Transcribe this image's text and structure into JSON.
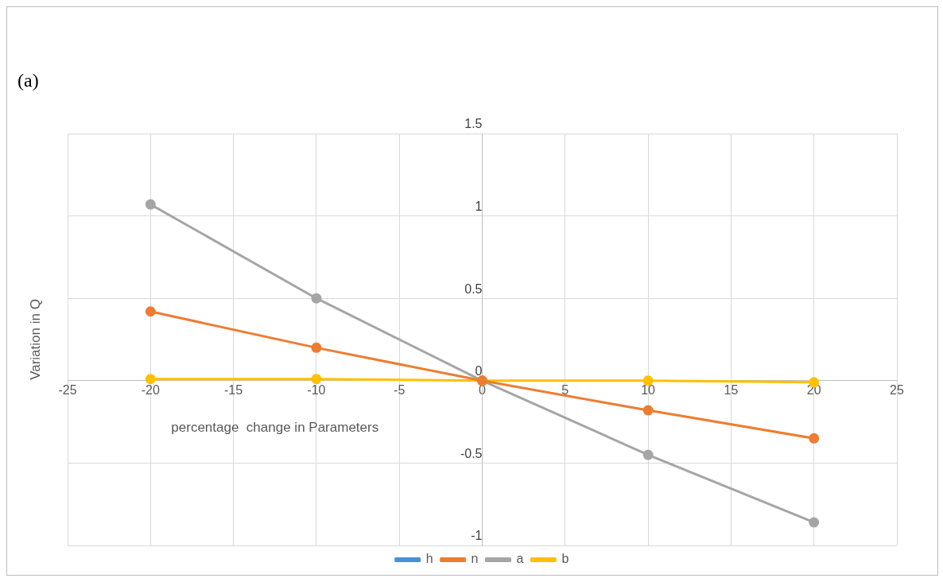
{
  "chart_data": {
    "type": "line",
    "xlabel": "percentage  change in Parameters",
    "ylabel": "Variation in Q",
    "annotations": [
      "(a)"
    ],
    "x": [
      -20,
      -10,
      0,
      10,
      20
    ],
    "series": [
      {
        "name": "h",
        "color": "#4a90d9",
        "values": [
          null,
          null,
          null,
          null,
          null
        ]
      },
      {
        "name": "n",
        "color": "#ed7d31",
        "values": [
          0.42,
          0.2,
          0,
          -0.18,
          -0.35
        ]
      },
      {
        "name": "a",
        "color": "#a5a5a5",
        "values": [
          1.07,
          0.5,
          0,
          -0.45,
          -0.86
        ]
      },
      {
        "name": "b",
        "color": "#ffc000",
        "values": [
          0.01,
          0.01,
          0,
          0,
          -0.01
        ]
      }
    ],
    "xlim": [
      -25,
      25
    ],
    "xticks": [
      -25,
      -20,
      -15,
      -10,
      -5,
      0,
      5,
      10,
      15,
      20,
      25
    ],
    "ylim": [
      -1,
      1.5
    ],
    "yticks": [
      -1,
      -0.5,
      0,
      0.5,
      1,
      1.5
    ],
    "grid": true,
    "legend": "bottom",
    "marker": "circle",
    "line_style": "solid"
  }
}
